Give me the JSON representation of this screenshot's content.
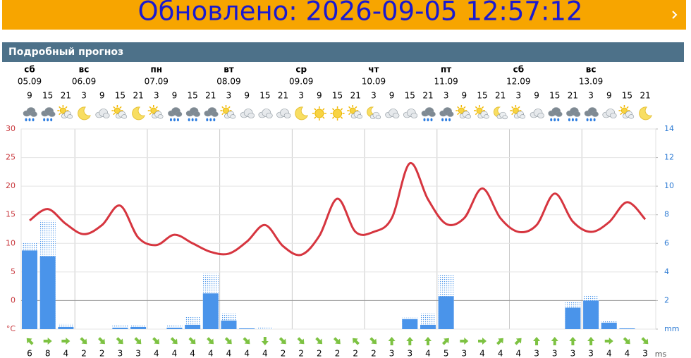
{
  "banner": {
    "updated": "Обновлено: 2026-09-05 12:57:12"
  },
  "section_title": "Подробный прогноз",
  "chart_data": {
    "type": "weather",
    "days": [
      {
        "name": "сб",
        "date": "05.09",
        "hours": [
          9,
          15,
          21
        ]
      },
      {
        "name": "вс",
        "date": "06.09",
        "hours": [
          3,
          9,
          15,
          21
        ]
      },
      {
        "name": "пн",
        "date": "07.09",
        "hours": [
          3,
          9,
          15,
          21
        ]
      },
      {
        "name": "вт",
        "date": "08.09",
        "hours": [
          3,
          9,
          15,
          21
        ]
      },
      {
        "name": "ср",
        "date": "09.09",
        "hours": [
          3,
          9,
          15,
          21
        ]
      },
      {
        "name": "чт",
        "date": "10.09",
        "hours": [
          3,
          9,
          15,
          21
        ]
      },
      {
        "name": "пт",
        "date": "11.09",
        "hours": [
          3,
          9,
          15,
          21
        ]
      },
      {
        "name": "сб",
        "date": "12.09",
        "hours": [
          3,
          9,
          15,
          21
        ]
      },
      {
        "name": "вс",
        "date": "13.09",
        "hours": [
          3,
          9,
          15,
          21
        ]
      }
    ],
    "icons": [
      "rain",
      "rain",
      "partly",
      "moon",
      "cloud",
      "partly",
      "moon",
      "partly",
      "rain",
      "rain",
      "rain",
      "partly",
      "cloud",
      "cloud",
      "cloud",
      "moon",
      "sun",
      "sun",
      "partly",
      "partly-night",
      "cloud",
      "cloud",
      "rain",
      "rain",
      "partly",
      "partly",
      "partly-night",
      "partly",
      "cloud",
      "rain",
      "rain",
      "rain",
      "cloud",
      "partly",
      "moon"
    ],
    "temperature": [
      14,
      16,
      13.4,
      11.6,
      13.2,
      16.6,
      11,
      9.7,
      11.5,
      10,
      8.5,
      8.2,
      10.3,
      13.2,
      9.5,
      8,
      11.3,
      17.8,
      12,
      12,
      14.4,
      24,
      17.7,
      13.4,
      14.4,
      19.6,
      14.4,
      12,
      13.2,
      18.7,
      13.8,
      12,
      13.7,
      17.2,
      14.2
    ],
    "precipitation": [
      5.5,
      5.1,
      0.15,
      0,
      0,
      0.1,
      0.15,
      0,
      0.1,
      0.3,
      2.5,
      0.6,
      0.05,
      0,
      0,
      0,
      0,
      0,
      0,
      0,
      0,
      0.7,
      0.3,
      2.3,
      0,
      0,
      0,
      0,
      0,
      0,
      1.5,
      2,
      0.45,
      0.05,
      0
    ],
    "precipitation_max": [
      6.1,
      7.6,
      0.35,
      0,
      0,
      0.25,
      0.25,
      0,
      0.3,
      0.9,
      3.9,
      1.1,
      0.05,
      0.1,
      0,
      0,
      0,
      0,
      0,
      0,
      0,
      0.8,
      1.1,
      3.8,
      0,
      0,
      0,
      0,
      0,
      0,
      1.9,
      2.4,
      0.55,
      0.05,
      0
    ],
    "wind_speed": [
      6,
      8,
      4,
      2,
      2,
      3,
      3,
      4,
      4,
      4,
      4,
      4,
      4,
      4,
      2,
      2,
      2,
      2,
      2,
      2,
      3,
      3,
      4,
      5,
      3,
      4,
      4,
      4,
      3,
      3,
      3,
      3,
      4,
      4,
      3
    ],
    "wind_dir": [
      315,
      90,
      90,
      135,
      135,
      135,
      135,
      135,
      135,
      135,
      135,
      135,
      135,
      180,
      135,
      135,
      135,
      135,
      315,
      135,
      0,
      0,
      0,
      45,
      90,
      90,
      45,
      45,
      0,
      0,
      0,
      0,
      90,
      135,
      135
    ],
    "wind_unit": "ms",
    "ylim": [
      -5,
      30
    ],
    "yticks": [
      {
        "value": -5,
        "label": "°C"
      },
      0,
      5,
      10,
      15,
      20,
      25,
      30
    ],
    "y2lim": [
      0,
      14
    ],
    "y2ticks": [
      {
        "value": 0,
        "label": "mm"
      },
      2,
      4,
      6,
      8,
      10,
      12,
      14
    ],
    "temp_color": "#d6353f",
    "precip_color": "#4a94ea",
    "wind_color": "#7dc242",
    "grid": true
  }
}
